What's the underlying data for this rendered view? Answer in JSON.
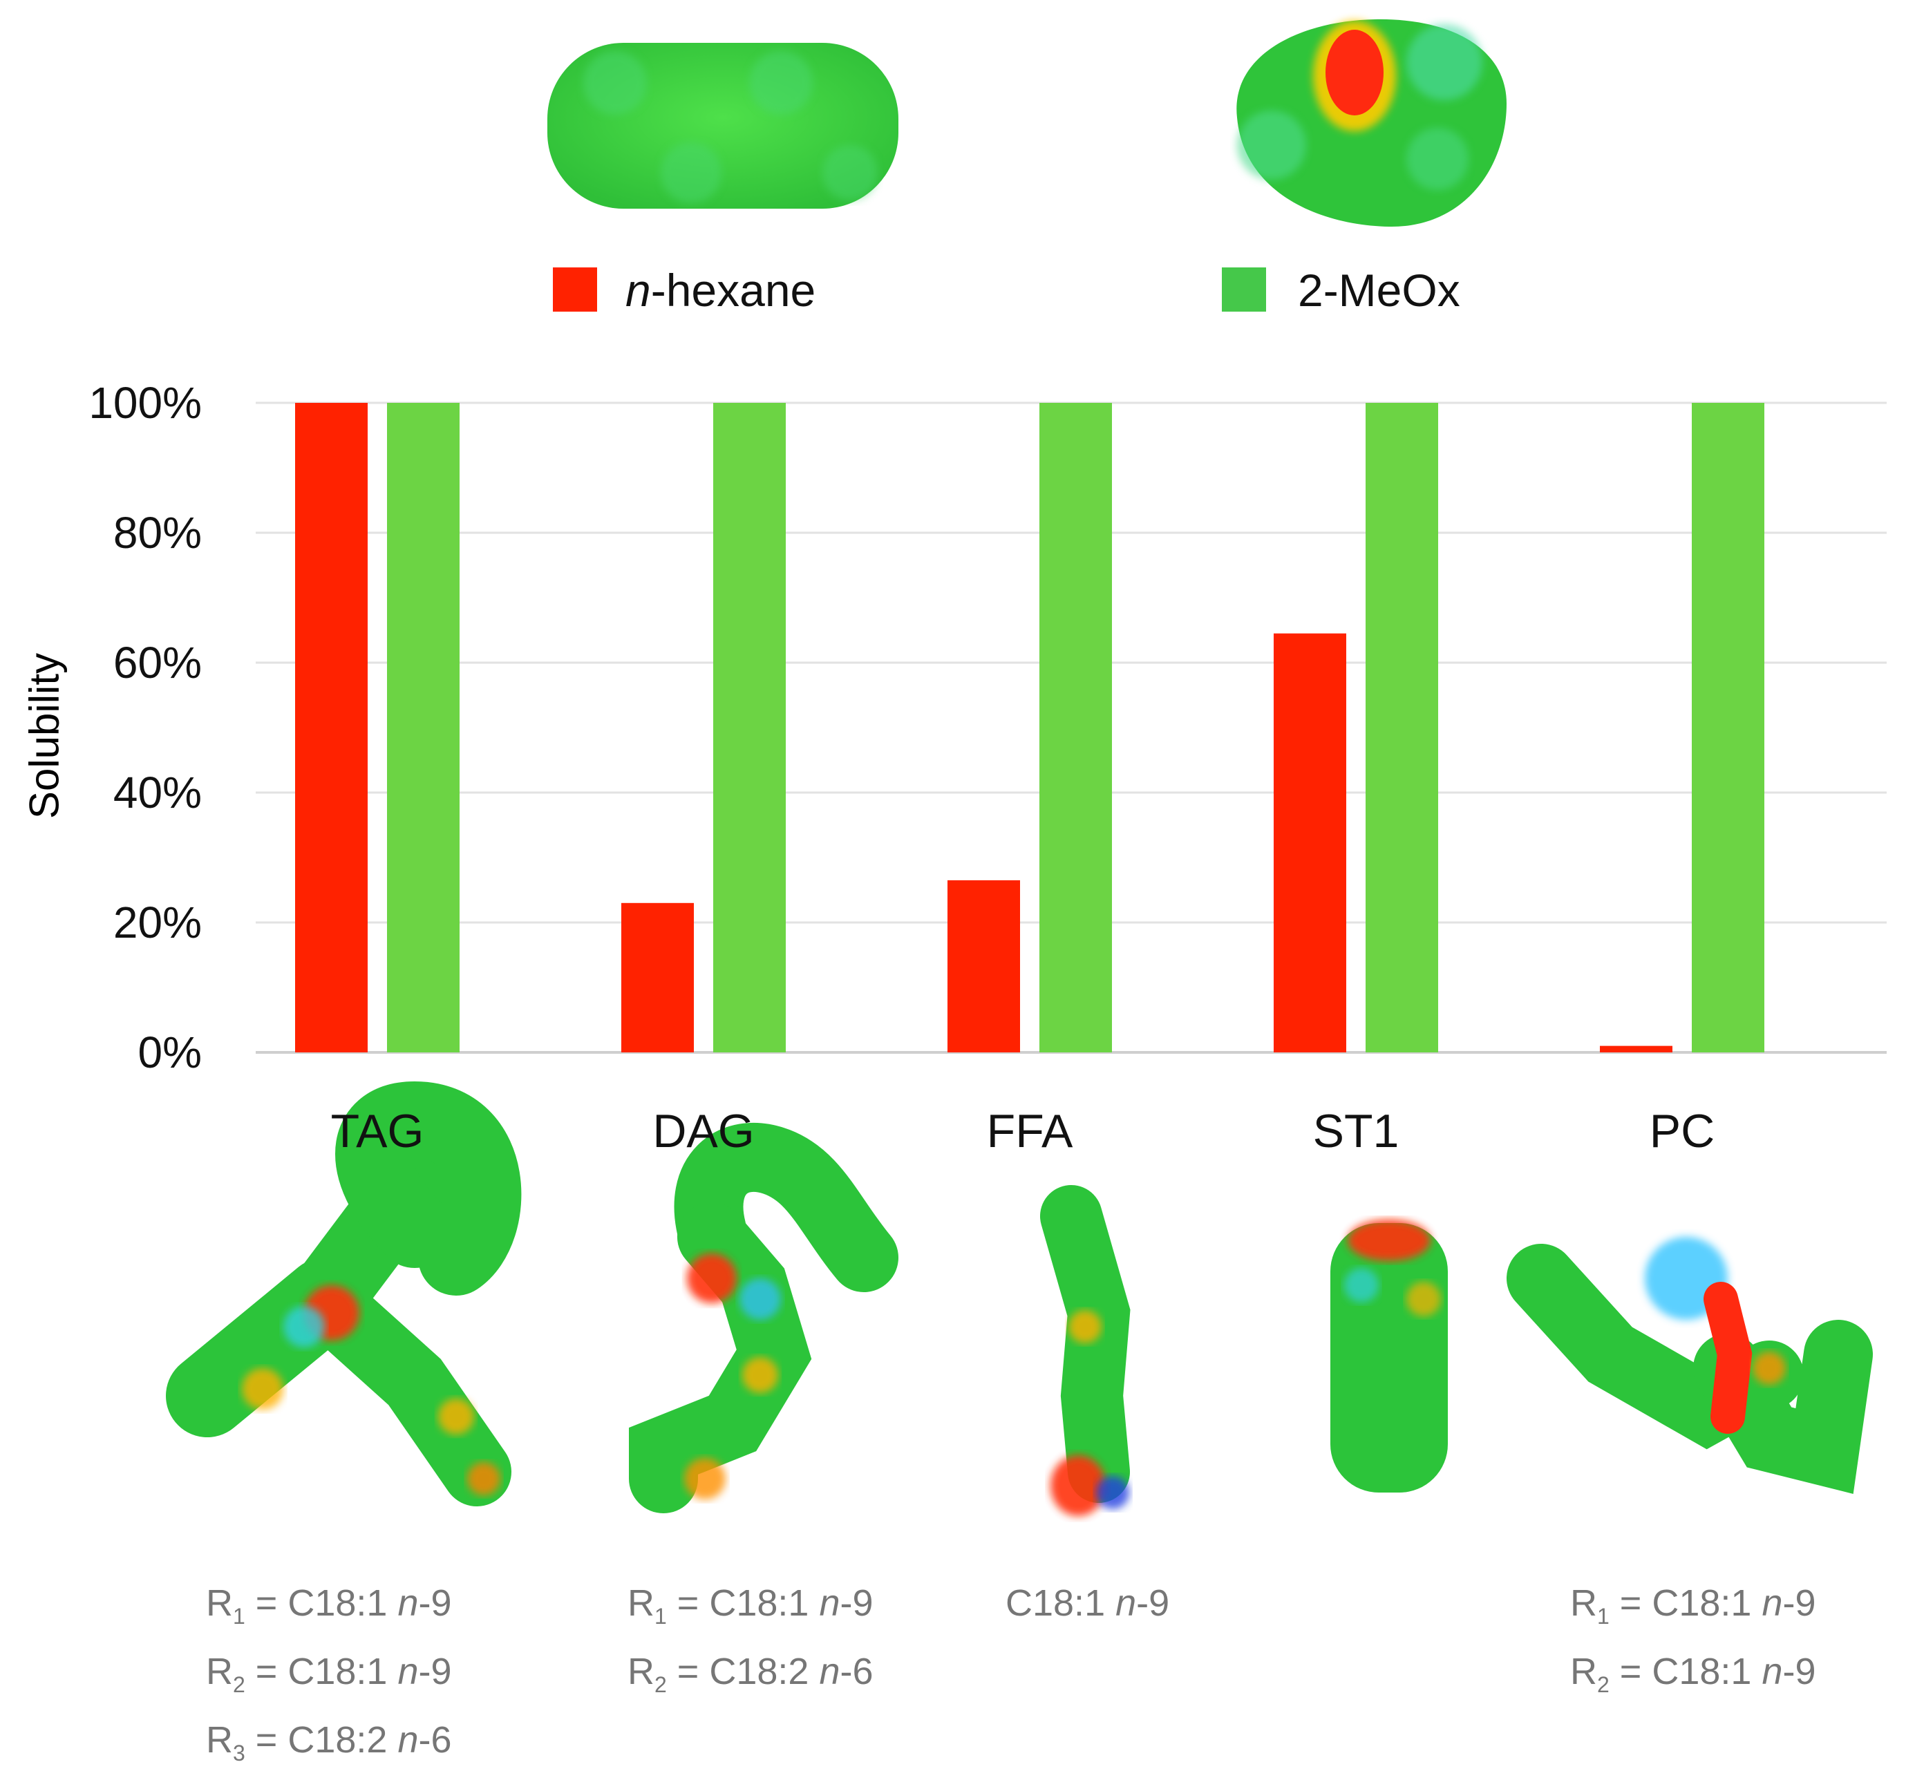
{
  "legend": {
    "series1": {
      "prefix": "n",
      "rest": "-hexane",
      "color": "#ff2200"
    },
    "series2": {
      "label": "2-MeOx",
      "color": "#45c84a"
    }
  },
  "chart_data": {
    "type": "bar",
    "ylabel": "Solubility",
    "ylim": [
      0,
      100
    ],
    "yticks": [
      "0%",
      "20%",
      "40%",
      "60%",
      "80%",
      "100%"
    ],
    "grid": true,
    "categories": [
      "TAG",
      "DAG",
      "FFA",
      "ST1",
      "PC"
    ],
    "series": [
      {
        "name": "n-hexane",
        "color": "#ff2200",
        "values": [
          100,
          23,
          26.5,
          64.5,
          1
        ]
      },
      {
        "name": "2-MeOx",
        "color": "#6cd444",
        "values": [
          100,
          100,
          100,
          100,
          100
        ]
      }
    ],
    "legend_position": "top"
  },
  "notes": {
    "TAG": [
      {
        "r": "R",
        "sub": "1",
        "eq": " = C18:1 ",
        "n": "n",
        "tail": "-9"
      },
      {
        "r": "R",
        "sub": "2",
        "eq": " = C18:1 ",
        "n": "n",
        "tail": "-9"
      },
      {
        "r": "R",
        "sub": "3",
        "eq": " = C18:2 ",
        "n": "n",
        "tail": "-6"
      }
    ],
    "DAG": [
      {
        "r": "R",
        "sub": "1",
        "eq": " = C18:1 ",
        "n": "n",
        "tail": "-9"
      },
      {
        "r": "R",
        "sub": "2",
        "eq": " = C18:2 ",
        "n": "n",
        "tail": "-6"
      }
    ],
    "FFA": [
      {
        "r": "",
        "sub": "",
        "eq": "C18:1 ",
        "n": "n",
        "tail": "-9"
      }
    ],
    "PC": [
      {
        "r": "R",
        "sub": "1",
        "eq": " = C18:1 ",
        "n": "n",
        "tail": "-9"
      },
      {
        "r": "R",
        "sub": "2",
        "eq": " = C18:1 ",
        "n": "n",
        "tail": "-9"
      }
    ]
  }
}
